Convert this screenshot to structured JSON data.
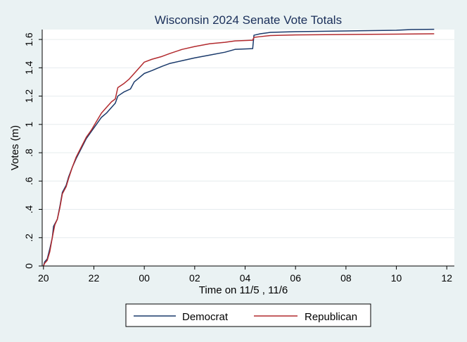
{
  "chart_data": {
    "type": "line",
    "title": "Wisconsin 2024 Senate Vote Totals",
    "xlabel": "Time on 11/5 , 11/6",
    "ylabel": "Votes (m)",
    "xlim": [
      19.95,
      36.3
    ],
    "ylim": [
      0,
      1.67
    ],
    "x_ticks": [
      {
        "value": 20,
        "label": "20"
      },
      {
        "value": 22,
        "label": "22"
      },
      {
        "value": 24,
        "label": "00"
      },
      {
        "value": 26,
        "label": "02"
      },
      {
        "value": 28,
        "label": "04"
      },
      {
        "value": 30,
        "label": "06"
      },
      {
        "value": 32,
        "label": "08"
      },
      {
        "value": 34,
        "label": "10"
      },
      {
        "value": 36,
        "label": "12"
      }
    ],
    "y_ticks": [
      {
        "value": 0,
        "label": "0"
      },
      {
        "value": 0.2,
        "label": ".2"
      },
      {
        "value": 0.4,
        "label": ".4"
      },
      {
        "value": 0.6,
        "label": ".6"
      },
      {
        "value": 0.8,
        "label": ".8"
      },
      {
        "value": 1.0,
        "label": "1"
      },
      {
        "value": 1.2,
        "label": "1.2"
      },
      {
        "value": 1.4,
        "label": "1.4"
      },
      {
        "value": 1.6,
        "label": "1.6"
      }
    ],
    "grid": true,
    "legend_position": "bottom",
    "x_note": "hours since midnight 11/5; values past 24 are on 11/6",
    "series": [
      {
        "name": "Democrat",
        "color": "#1a3a6b",
        "points": [
          [
            20.0,
            0.0
          ],
          [
            20.05,
            0.03
          ],
          [
            20.15,
            0.05
          ],
          [
            20.25,
            0.12
          ],
          [
            20.35,
            0.2
          ],
          [
            20.4,
            0.28
          ],
          [
            20.55,
            0.33
          ],
          [
            20.65,
            0.42
          ],
          [
            20.75,
            0.52
          ],
          [
            20.9,
            0.57
          ],
          [
            21.0,
            0.63
          ],
          [
            21.15,
            0.7
          ],
          [
            21.3,
            0.76
          ],
          [
            21.5,
            0.83
          ],
          [
            21.7,
            0.9
          ],
          [
            21.9,
            0.95
          ],
          [
            22.1,
            1.0
          ],
          [
            22.3,
            1.05
          ],
          [
            22.5,
            1.08
          ],
          [
            22.7,
            1.12
          ],
          [
            22.85,
            1.15
          ],
          [
            22.95,
            1.2
          ],
          [
            23.2,
            1.23
          ],
          [
            23.45,
            1.25
          ],
          [
            23.6,
            1.3
          ],
          [
            23.8,
            1.33
          ],
          [
            24.0,
            1.36
          ],
          [
            24.3,
            1.38
          ],
          [
            24.7,
            1.41
          ],
          [
            25.0,
            1.43
          ],
          [
            25.5,
            1.45
          ],
          [
            26.0,
            1.47
          ],
          [
            26.6,
            1.49
          ],
          [
            27.2,
            1.51
          ],
          [
            27.6,
            1.53
          ],
          [
            28.3,
            1.535
          ],
          [
            28.35,
            1.63
          ],
          [
            28.6,
            1.64
          ],
          [
            29.0,
            1.65
          ],
          [
            30.0,
            1.655
          ],
          [
            32.0,
            1.66
          ],
          [
            34.0,
            1.665
          ],
          [
            34.6,
            1.67
          ],
          [
            35.5,
            1.672
          ]
        ]
      },
      {
        "name": "Republican",
        "color": "#b22a2e",
        "points": [
          [
            20.0,
            0.0
          ],
          [
            20.05,
            0.02
          ],
          [
            20.15,
            0.04
          ],
          [
            20.25,
            0.1
          ],
          [
            20.35,
            0.2
          ],
          [
            20.45,
            0.29
          ],
          [
            20.55,
            0.33
          ],
          [
            20.65,
            0.41
          ],
          [
            20.75,
            0.51
          ],
          [
            20.9,
            0.56
          ],
          [
            21.0,
            0.62
          ],
          [
            21.15,
            0.7
          ],
          [
            21.3,
            0.77
          ],
          [
            21.5,
            0.84
          ],
          [
            21.7,
            0.91
          ],
          [
            21.9,
            0.96
          ],
          [
            22.1,
            1.02
          ],
          [
            22.3,
            1.08
          ],
          [
            22.5,
            1.12
          ],
          [
            22.7,
            1.16
          ],
          [
            22.85,
            1.18
          ],
          [
            22.95,
            1.26
          ],
          [
            23.2,
            1.29
          ],
          [
            23.4,
            1.32
          ],
          [
            23.6,
            1.36
          ],
          [
            23.8,
            1.4
          ],
          [
            24.0,
            1.44
          ],
          [
            24.3,
            1.46
          ],
          [
            24.7,
            1.48
          ],
          [
            25.0,
            1.5
          ],
          [
            25.5,
            1.53
          ],
          [
            26.0,
            1.55
          ],
          [
            26.6,
            1.57
          ],
          [
            27.2,
            1.58
          ],
          [
            27.6,
            1.59
          ],
          [
            28.3,
            1.595
          ],
          [
            28.35,
            1.615
          ],
          [
            28.6,
            1.62
          ],
          [
            29.0,
            1.628
          ],
          [
            30.0,
            1.632
          ],
          [
            32.0,
            1.635
          ],
          [
            34.0,
            1.638
          ],
          [
            35.5,
            1.64
          ]
        ]
      }
    ]
  }
}
